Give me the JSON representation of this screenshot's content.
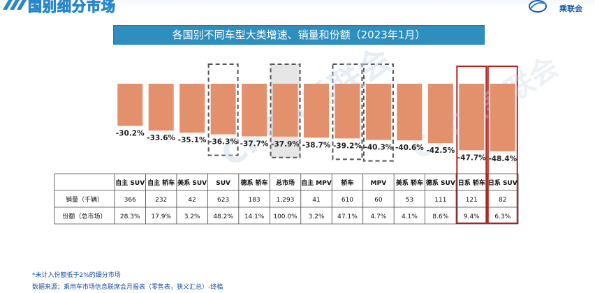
{
  "header": {
    "title": "国别细分市场",
    "logo_text": "乘联会"
  },
  "banner_title": "各国别不同车型大类增速、销量和份额（2023年1月）",
  "chart_data": {
    "type": "bar",
    "title": "各国别不同车型大类增速、销量和份额（2023年1月）",
    "categories": [
      "自主 SUV",
      "自主 轿车",
      "美系 SUV",
      "SUV",
      "德系 轿车",
      "总市场",
      "自主 MPV",
      "轿车",
      "MPV",
      "美系 轿车",
      "德系 SUV",
      "日系 轿车",
      "日系 SUV"
    ],
    "series": [
      {
        "values": [
          -30.2,
          -33.6,
          -35.1,
          -36.3,
          -37.7,
          -37.9,
          -38.7,
          -39.2,
          -40.3,
          -40.6,
          -42.5,
          -47.7,
          -48.4
        ]
      }
    ],
    "value_labels": [
      "-30.2%",
      "-33.6%",
      "-35.1%",
      "-36.3%",
      "-37.7%",
      "-37.9%",
      "-38.7%",
      "-39.2%",
      "-40.3%",
      "-40.6%",
      "-42.5%",
      "-47.7%",
      "-48.4%"
    ],
    "unit": "%",
    "ylim": [
      -50,
      0
    ],
    "bar_color": "#e3906d",
    "dashed_highlight_categories": [
      "SUV",
      "总市场",
      "轿车",
      "MPV"
    ],
    "filled_highlight_categories": [
      "总市场"
    ],
    "red_box_categories": [
      "日系 轿车",
      "日系 SUV"
    ],
    "highlight_dash_color": "#555555",
    "highlight_fill_color": "#e6e6e6",
    "red_box_color": "#b22222",
    "table": {
      "rows": [
        {
          "label": "销量（千辆）",
          "values": [
            "366",
            "232",
            "42",
            "623",
            "183",
            "1,293",
            "41",
            "610",
            "60",
            "53",
            "111",
            "121",
            "82"
          ]
        },
        {
          "label": "份额（总市场）",
          "values": [
            "28.3%",
            "17.9%",
            "3.2%",
            "48.2%",
            "14.1%",
            "100.0%",
            "3.2%",
            "47.1%",
            "4.7%",
            "4.1%",
            "8.6%",
            "9.4%",
            "6.3%"
          ]
        }
      ]
    }
  },
  "footnotes": [
    "*未计入份额低于2%的细分市场",
    "数据来源：乘用车市场信息联席会月报表（零售表，狭义汇总）-终稿"
  ],
  "watermark": "CPCA乘联会"
}
